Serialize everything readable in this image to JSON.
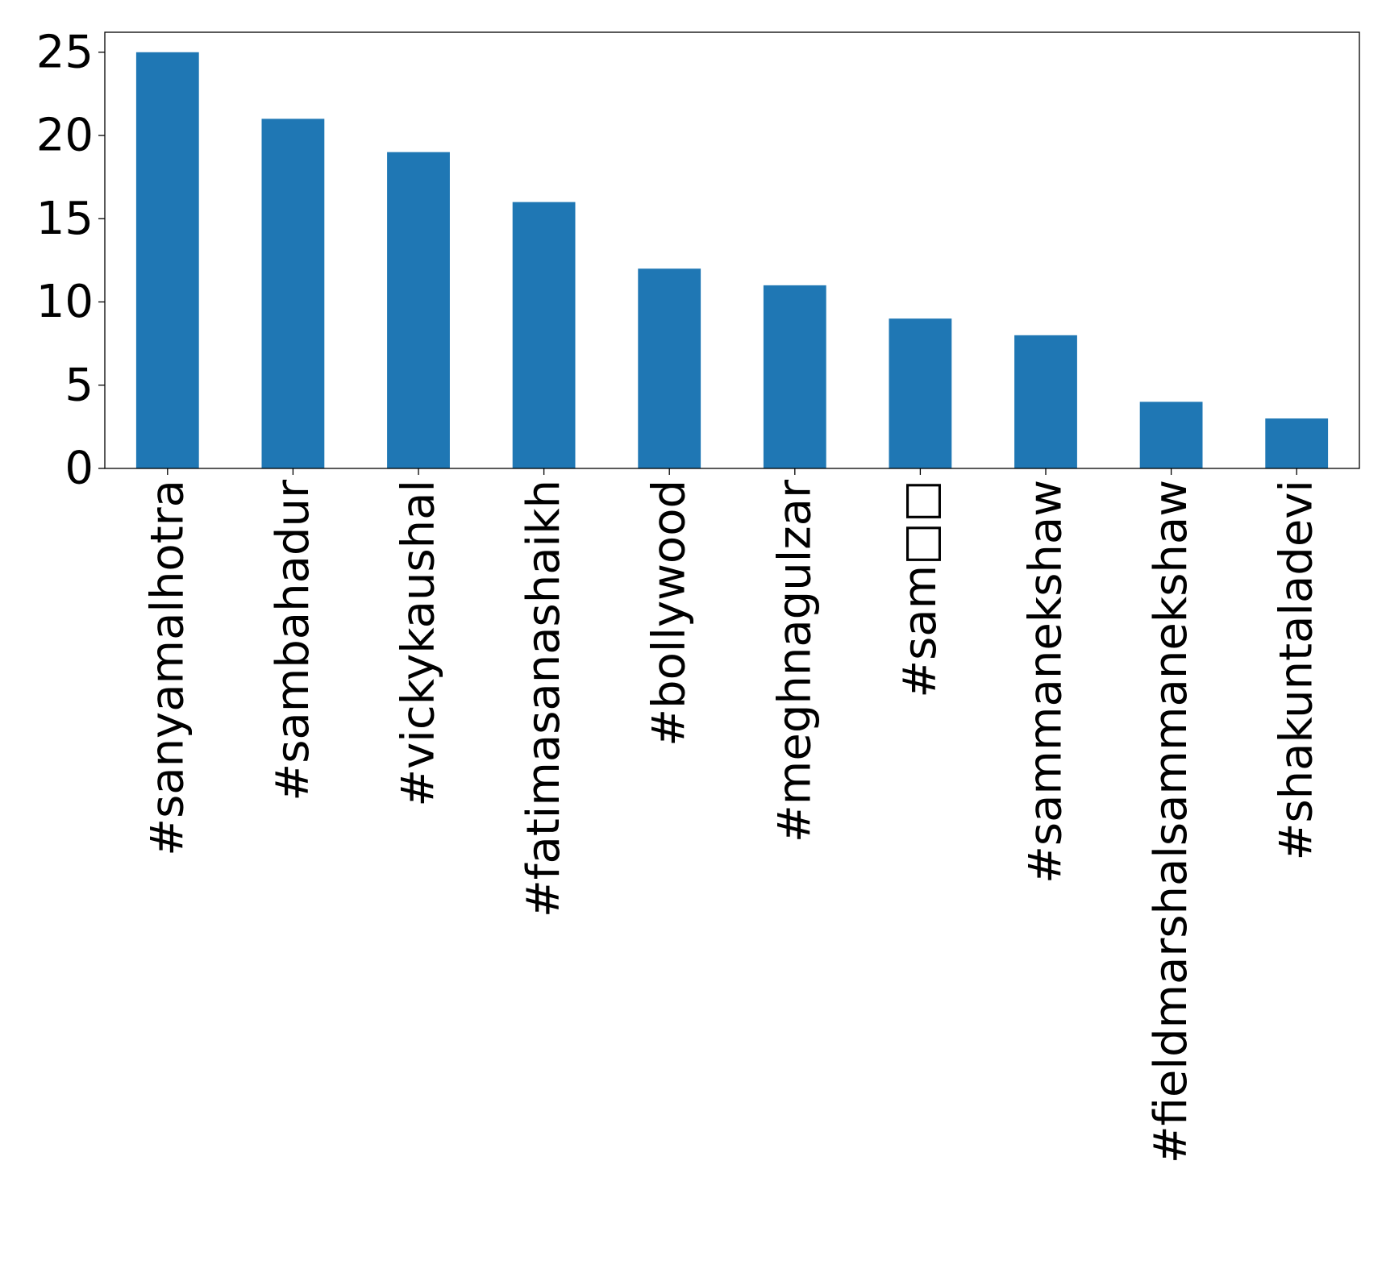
{
  "chart_data": {
    "type": "bar",
    "categories": [
      "#sanyamalhotra",
      "#sambahadur",
      "#vickykaushal",
      "#fatimasanashaikh",
      "#bollywood",
      "#meghnagulzar",
      "#sam□□",
      "#sammanekshaw",
      "#fieldmarshalsammanekshaw",
      "#shakuntaladevi"
    ],
    "values": [
      25,
      21,
      19,
      16,
      12,
      11,
      9,
      8,
      4,
      3
    ],
    "title": "",
    "xlabel": "",
    "ylabel": "",
    "ylim": [
      0,
      26.2
    ],
    "yticks": [
      0,
      5,
      10,
      15,
      20,
      25
    ],
    "grid": false,
    "legend": "none",
    "bar_color": "#1f77b4",
    "x_tick_rotation": 90
  }
}
